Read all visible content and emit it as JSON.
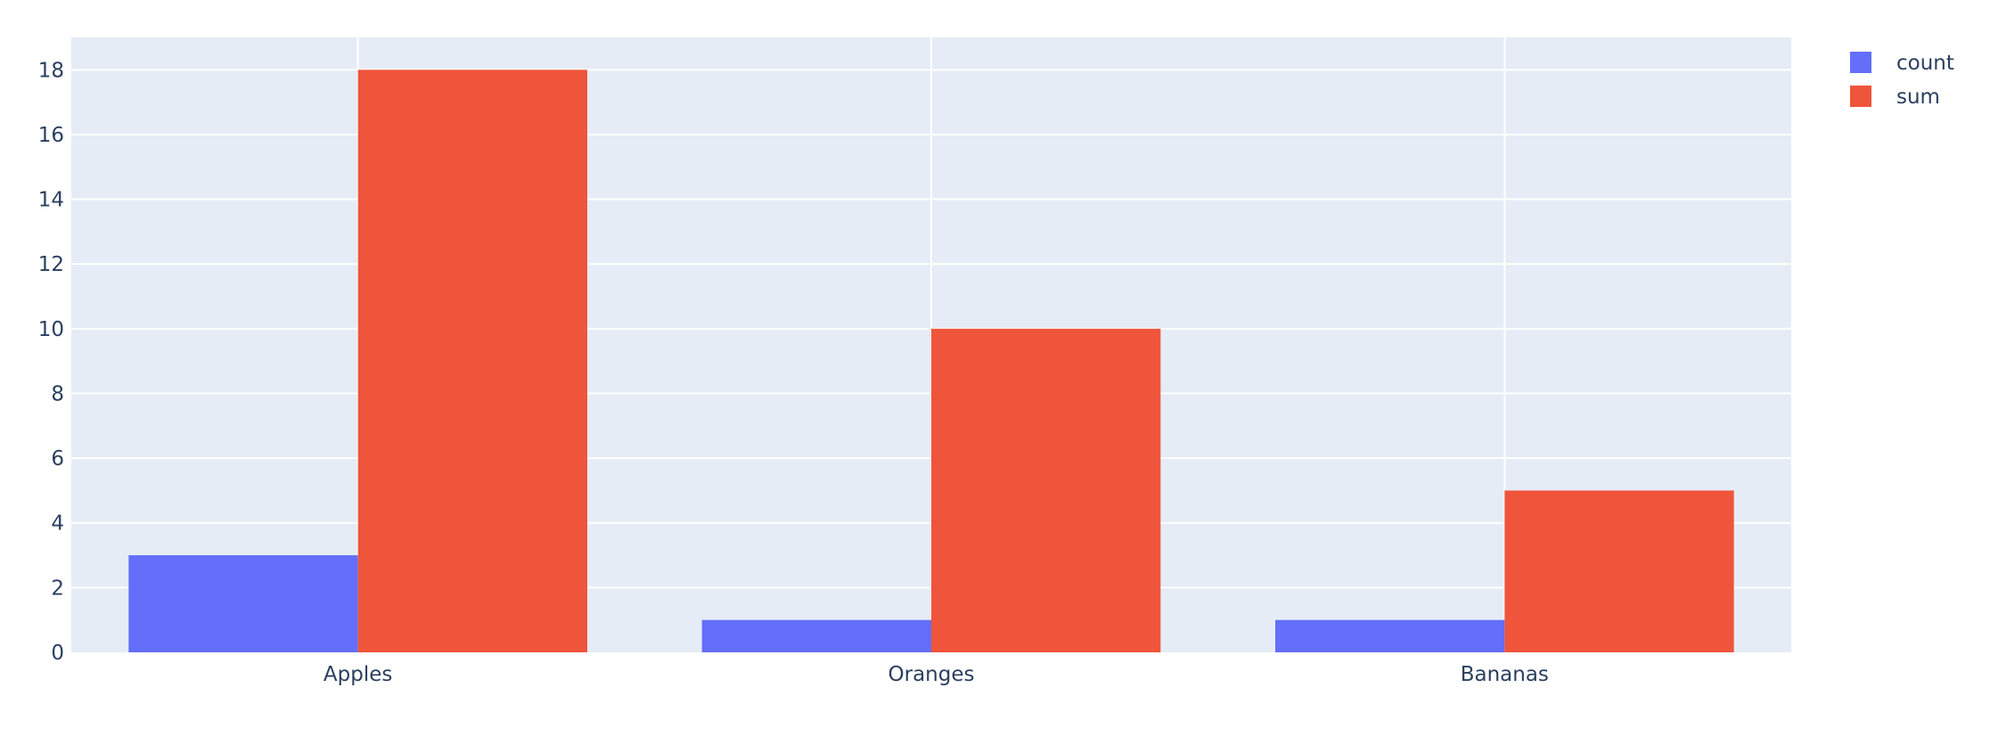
{
  "chart_data": {
    "type": "bar",
    "categories": [
      "Apples",
      "Oranges",
      "Bananas"
    ],
    "series": [
      {
        "name": "count",
        "values": [
          3,
          1,
          1
        ],
        "color": "#636efa"
      },
      {
        "name": "sum",
        "values": [
          18,
          10,
          5
        ],
        "color": "#ef553b"
      }
    ],
    "ylim": [
      0,
      19
    ],
    "yticks": [
      0,
      2,
      4,
      6,
      8,
      10,
      12,
      14,
      16,
      18
    ],
    "grid": true,
    "legend": "top-right",
    "plot_background": "#e5ecf6"
  }
}
